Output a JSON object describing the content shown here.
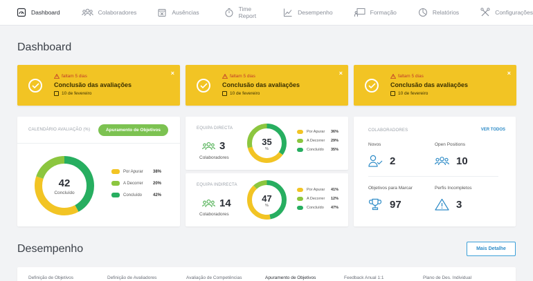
{
  "nav": [
    {
      "label": "Dashboard",
      "icon": "dashboard-icon",
      "active": true
    },
    {
      "label": "Colaboradores",
      "icon": "people-icon"
    },
    {
      "label": "Ausências",
      "icon": "calendar-x-icon"
    },
    {
      "label": "Time Report",
      "icon": "stopwatch-icon"
    },
    {
      "label": "Desempenho",
      "icon": "trend-chart-icon"
    },
    {
      "label": "Formação",
      "icon": "presentation-icon"
    },
    {
      "label": "Relatórios",
      "icon": "pie-chart-icon"
    },
    {
      "label": "Configurações",
      "icon": "tools-icon"
    }
  ],
  "page_title": "Dashboard",
  "alerts": [
    {
      "warning": "faltam 5 dias",
      "title": "Conclusão das avaliações",
      "date": "10 de fevereiro",
      "close": "×"
    },
    {
      "warning": "faltam 5 dias",
      "title": "Conclusão das avaliações",
      "date": "10 de fevereiro",
      "close": "×"
    },
    {
      "warning": "faltam 5 dias",
      "title": "Conclusão das avaliações",
      "date": "10 de fevereiro",
      "close": "×"
    }
  ],
  "calendar": {
    "title": "CALENDÁRIO AVALIAÇÃO (%)",
    "button": "Apuramento de Objetivos",
    "center_value": "42",
    "center_label": "Concluído",
    "legend": [
      {
        "label": "Por Apurar",
        "value": "38%",
        "color": "#f2c424",
        "pct": 38
      },
      {
        "label": "A Decorrer",
        "value": "20%",
        "color": "#8cc63f",
        "pct": 20
      },
      {
        "label": "Concluído",
        "value": "42%",
        "color": "#27ae60",
        "pct": 42
      }
    ]
  },
  "team_direct": {
    "title": "EQUIPA DIRECTA",
    "count": "3",
    "count_label": "Colaboradores",
    "center_value": "35",
    "center_unit": "%",
    "legend": [
      {
        "label": "Por Apurar",
        "value": "36%",
        "color": "#f2c424",
        "pct": 36
      },
      {
        "label": "A Decorrer",
        "value": "29%",
        "color": "#8cc63f",
        "pct": 29
      },
      {
        "label": "Concluído",
        "value": "35%",
        "color": "#27ae60",
        "pct": 35
      }
    ]
  },
  "team_indirect": {
    "title": "EQUIPA INDIRECTA",
    "count": "14",
    "count_label": "Colaboradores",
    "center_value": "47",
    "center_unit": "%",
    "legend": [
      {
        "label": "Por Apurar",
        "value": "41%",
        "color": "#f2c424",
        "pct": 41
      },
      {
        "label": "A Decorrer",
        "value": "12%",
        "color": "#8cc63f",
        "pct": 12
      },
      {
        "label": "Concluído",
        "value": "47%",
        "color": "#27ae60",
        "pct": 47
      }
    ]
  },
  "colaboradores": {
    "title": "COLABORADORES",
    "link": "VER TODOS",
    "stats": [
      {
        "label": "Novos",
        "value": "2",
        "icon": "user-check-icon"
      },
      {
        "label": "Open Positions",
        "value": "10",
        "icon": "people-icon"
      },
      {
        "label": "Objetivos para Marcar",
        "value": "97",
        "icon": "trophy-icon"
      },
      {
        "label": "Perfis Incompletos",
        "value": "3",
        "icon": "warning-icon"
      }
    ]
  },
  "desempenho": {
    "title": "Desempenho",
    "button": "Mais Detalhe",
    "tabs": [
      "Definição de Objetivos",
      "Definição de Avaliadores",
      "Avaliação de Competências",
      "Apuramento de Objetivos",
      "Feedback Anual 1:1",
      "Plano de Des. Individual"
    ],
    "active_tab": 3
  },
  "colors": {
    "accent_yellow": "#f2c424",
    "light_green": "#8cc63f",
    "dark_green": "#27ae60",
    "link_blue": "#2d8bc7"
  }
}
